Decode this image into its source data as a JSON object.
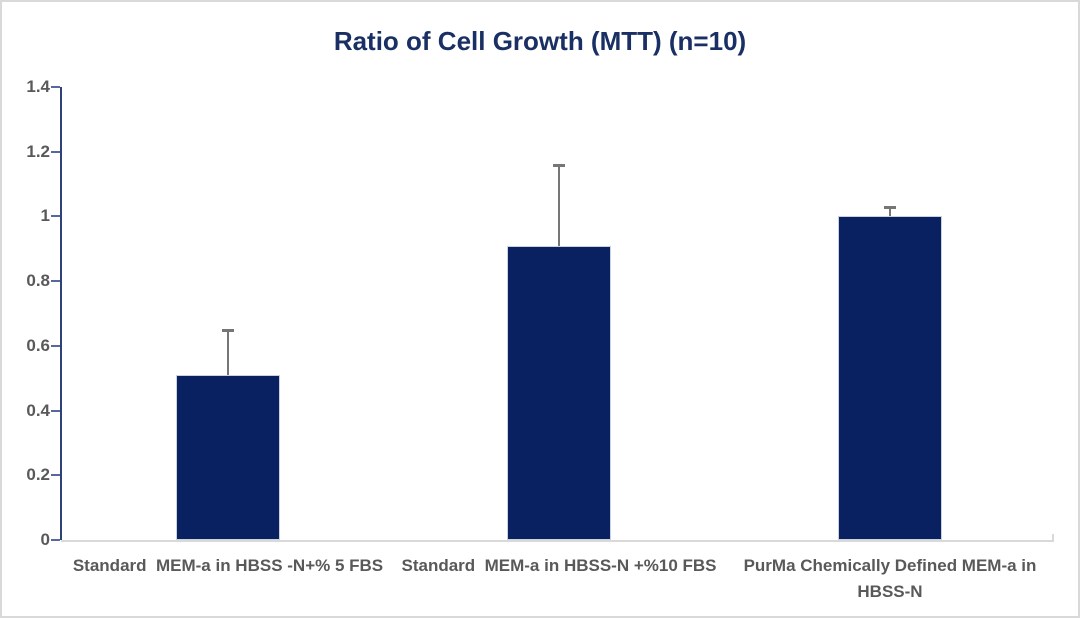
{
  "window": {
    "background": "#ffffff",
    "border_color": "#d9d9d9"
  },
  "chart_data": {
    "type": "bar",
    "title": "Ratio of Cell Growth (MTT) (n=10)",
    "categories": [
      "Standard  MEM-a in HBSS -N+% 5 FBS",
      "Standard  MEM-a in HBSS-N +%10 FBS",
      "PurMa Chemically Defined MEM-a in\nHBSS-N"
    ],
    "values": [
      0.51,
      0.91,
      1.0
    ],
    "error_plus": [
      0.14,
      0.25,
      0.03
    ],
    "ylim": [
      0,
      1.4
    ],
    "yticks": [
      "0",
      "0.2",
      "0.4",
      "0.6",
      "0.8",
      "1",
      "1.2",
      "1.4"
    ],
    "ytick_values": [
      0,
      0.2,
      0.4,
      0.6,
      0.8,
      1,
      1.2,
      1.4
    ],
    "xlabel": "",
    "ylabel": "",
    "legend": "none",
    "grid": "off",
    "colors": {
      "bar": "#0a2161",
      "bar_border": "#ccd2dd",
      "title": "#1a2f63",
      "axis_line": "#2f4278",
      "tick_mark": "#5668a0",
      "tick_label": "#595959",
      "category_label": "#595959",
      "baseline": "#d9d9d9",
      "error_bar": "#767676"
    }
  }
}
